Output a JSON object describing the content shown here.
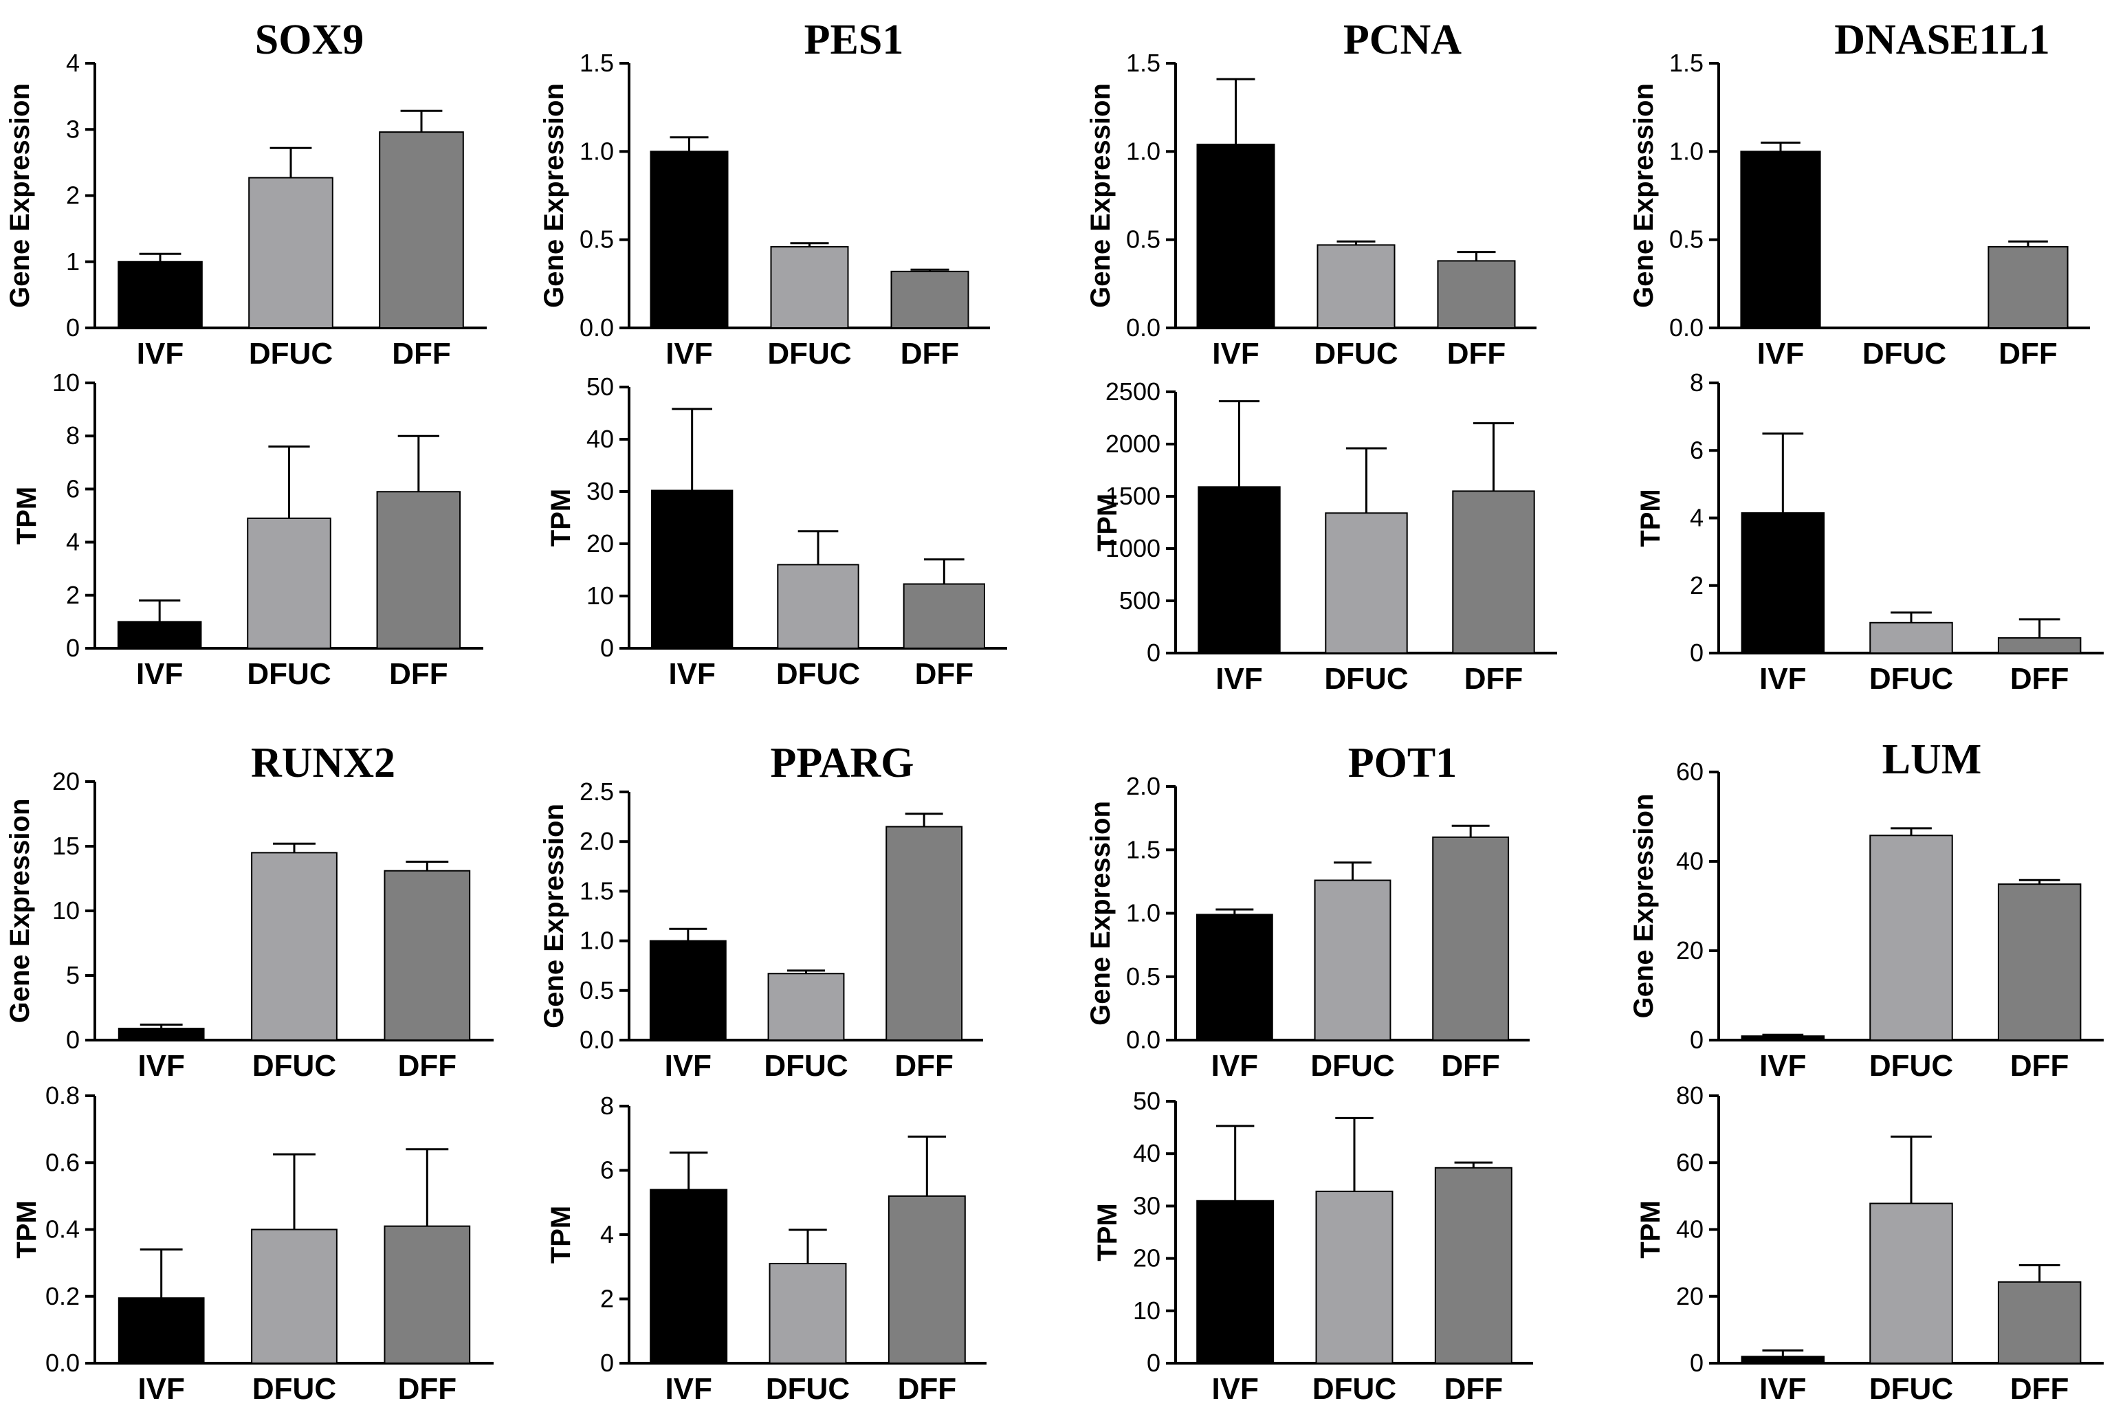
{
  "chart_data": [
    {
      "type": "bar",
      "title": "SOX9",
      "ylabel": "Gene Expression",
      "categories": [
        "IVF",
        "DFUC",
        "DFF"
      ],
      "values": [
        1.0,
        2.27,
        2.96
      ],
      "errors": [
        0.12,
        0.45,
        0.32
      ],
      "ylim": [
        0,
        4
      ],
      "ticks": [
        "0",
        "1",
        "2",
        "3",
        "4"
      ],
      "colors": [
        "#000000",
        "#a3a3a6",
        "#7f7f7f"
      ]
    },
    {
      "type": "bar",
      "title": "PES1",
      "ylabel": "Gene Expression",
      "categories": [
        "IVF",
        "DFUC",
        "DFF"
      ],
      "values": [
        1.0,
        0.46,
        0.32
      ],
      "errors": [
        0.08,
        0.02,
        0.01
      ],
      "ylim": [
        0,
        1.5
      ],
      "ticks": [
        "0.0",
        "0.5",
        "1.0",
        "1.5"
      ],
      "colors": [
        "#000000",
        "#a3a3a6",
        "#7f7f7f"
      ]
    },
    {
      "type": "bar",
      "title": "PCNA",
      "ylabel": "Gene Expression",
      "categories": [
        "IVF",
        "DFUC",
        "DFF"
      ],
      "values": [
        1.04,
        0.47,
        0.38
      ],
      "errors": [
        0.37,
        0.02,
        0.05
      ],
      "ylim": [
        0,
        1.5
      ],
      "ticks": [
        "0.0",
        "0.5",
        "1.0",
        "1.5"
      ],
      "colors": [
        "#000000",
        "#a3a3a6",
        "#7f7f7f"
      ]
    },
    {
      "type": "bar",
      "title": "DNASE1L1",
      "ylabel": "Gene Expression",
      "categories": [
        "IVF",
        "DFUC",
        "DFF"
      ],
      "values": [
        1.0,
        0.0,
        0.46
      ],
      "errors": [
        0.05,
        0.0,
        0.03
      ],
      "ylim": [
        0,
        1.5
      ],
      "ticks": [
        "0.0",
        "0.5",
        "1.0",
        "1.5"
      ],
      "colors": [
        "#000000",
        "#a3a3a6",
        "#7f7f7f"
      ]
    },
    {
      "type": "bar",
      "title": "",
      "ylabel": "TPM",
      "categories": [
        "IVF",
        "DFUC",
        "DFF"
      ],
      "values": [
        1.0,
        4.9,
        5.9
      ],
      "errors": [
        0.8,
        2.7,
        2.1
      ],
      "ylim": [
        0,
        10
      ],
      "ticks": [
        "0",
        "2",
        "4",
        "6",
        "8",
        "10"
      ],
      "colors": [
        "#000000",
        "#a3a3a6",
        "#7f7f7f"
      ]
    },
    {
      "type": "bar",
      "title": "",
      "ylabel": "TPM",
      "categories": [
        "IVF",
        "DFUC",
        "DFF"
      ],
      "values": [
        30.2,
        16.0,
        12.3
      ],
      "errors": [
        15.6,
        6.4,
        4.7
      ],
      "ylim": [
        0,
        50
      ],
      "ticks": [
        "0",
        "10",
        "20",
        "30",
        "40",
        "50"
      ],
      "colors": [
        "#000000",
        "#a3a3a6",
        "#7f7f7f"
      ]
    },
    {
      "type": "bar",
      "title": "",
      "ylabel": "TPM",
      "categories": [
        "IVF",
        "DFUC",
        "DFF"
      ],
      "values": [
        1590,
        1340,
        1550
      ],
      "errors": [
        820,
        620,
        650
      ],
      "ylim": [
        0,
        2500
      ],
      "ticks": [
        "0",
        "500",
        "1000",
        "1500",
        "2000",
        "2500"
      ],
      "colors": [
        "#000000",
        "#a3a3a6",
        "#7f7f7f"
      ]
    },
    {
      "type": "bar",
      "title": "",
      "ylabel": "TPM",
      "categories": [
        "IVF",
        "DFUC",
        "DFF"
      ],
      "values": [
        4.15,
        0.9,
        0.45
      ],
      "errors": [
        2.35,
        0.3,
        0.55
      ],
      "ylim": [
        0,
        8
      ],
      "ticks": [
        "0",
        "2",
        "4",
        "6",
        "8"
      ],
      "colors": [
        "#000000",
        "#a3a3a6",
        "#7f7f7f"
      ]
    },
    {
      "type": "bar",
      "title": "RUNX2",
      "ylabel": "Gene Expression",
      "categories": [
        "IVF",
        "DFUC",
        "DFF"
      ],
      "values": [
        0.9,
        14.5,
        13.1
      ],
      "errors": [
        0.3,
        0.7,
        0.7
      ],
      "ylim": [
        0,
        20
      ],
      "ticks": [
        "0",
        "5",
        "10",
        "15",
        "20"
      ],
      "colors": [
        "#000000",
        "#a3a3a6",
        "#7f7f7f"
      ]
    },
    {
      "type": "bar",
      "title": "PPARG",
      "ylabel": "Gene Expression",
      "categories": [
        "IVF",
        "DFUC",
        "DFF"
      ],
      "values": [
        1.0,
        0.67,
        2.15
      ],
      "errors": [
        0.12,
        0.03,
        0.13
      ],
      "ylim": [
        0,
        2.5
      ],
      "ticks": [
        "0.0",
        "0.5",
        "1.0",
        "1.5",
        "2.0",
        "2.5"
      ],
      "colors": [
        "#000000",
        "#a3a3a6",
        "#7f7f7f"
      ]
    },
    {
      "type": "bar",
      "title": "POT1",
      "ylabel": "Gene Expression",
      "categories": [
        "IVF",
        "DFUC",
        "DFF"
      ],
      "values": [
        0.99,
        1.26,
        1.6
      ],
      "errors": [
        0.04,
        0.14,
        0.09
      ],
      "ylim": [
        0,
        2.0
      ],
      "ticks": [
        "0.0",
        "0.5",
        "1.0",
        "1.5",
        "2.0"
      ],
      "colors": [
        "#000000",
        "#a3a3a6",
        "#7f7f7f"
      ]
    },
    {
      "type": "bar",
      "title": "LUM",
      "ylabel": "Gene Expression",
      "categories": [
        "IVF",
        "DFUC",
        "DFF"
      ],
      "values": [
        0.9,
        45.8,
        34.9
      ],
      "errors": [
        0.3,
        1.6,
        0.9
      ],
      "ylim": [
        0,
        60
      ],
      "ticks": [
        "0",
        "20",
        "40",
        "60"
      ],
      "colors": [
        "#000000",
        "#a3a3a6",
        "#7f7f7f"
      ]
    },
    {
      "type": "bar",
      "title": "",
      "ylabel": "TPM",
      "categories": [
        "IVF",
        "DFUC",
        "DFF"
      ],
      "values": [
        0.195,
        0.4,
        0.41
      ],
      "errors": [
        0.145,
        0.225,
        0.23
      ],
      "ylim": [
        0,
        0.8
      ],
      "ticks": [
        "0.0",
        "0.2",
        "0.4",
        "0.6",
        "0.8"
      ],
      "colors": [
        "#000000",
        "#a3a3a6",
        "#7f7f7f"
      ]
    },
    {
      "type": "bar",
      "title": "",
      "ylabel": "TPM",
      "categories": [
        "IVF",
        "DFUC",
        "DFF"
      ],
      "values": [
        5.4,
        3.1,
        5.2
      ],
      "errors": [
        1.15,
        1.05,
        1.85
      ],
      "ylim": [
        0,
        8
      ],
      "ticks": [
        "0",
        "2",
        "4",
        "6",
        "8"
      ],
      "colors": [
        "#000000",
        "#a3a3a6",
        "#7f7f7f"
      ]
    },
    {
      "type": "bar",
      "title": "",
      "ylabel": "TPM",
      "categories": [
        "IVF",
        "DFUC",
        "DFF"
      ],
      "values": [
        31.0,
        32.8,
        37.3
      ],
      "errors": [
        14.3,
        14.0,
        1.0
      ],
      "ylim": [
        0,
        50
      ],
      "ticks": [
        "0",
        "10",
        "20",
        "30",
        "40",
        "50"
      ],
      "colors": [
        "#000000",
        "#a3a3a6",
        "#7f7f7f"
      ]
    },
    {
      "type": "bar",
      "title": "",
      "ylabel": "TPM",
      "categories": [
        "IVF",
        "DFUC",
        "DFF"
      ],
      "values": [
        2.0,
        47.8,
        24.3
      ],
      "errors": [
        1.8,
        20.0,
        5.0
      ],
      "ylim": [
        0,
        80
      ],
      "ticks": [
        "0",
        "20",
        "40",
        "60",
        "80"
      ],
      "colors": [
        "#000000",
        "#a3a3a6",
        "#7f7f7f"
      ]
    }
  ]
}
